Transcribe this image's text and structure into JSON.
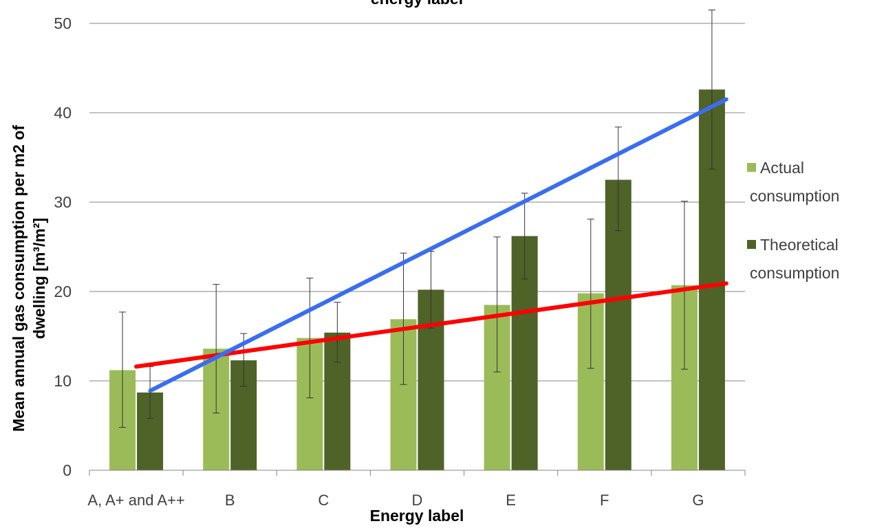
{
  "chart_data": {
    "type": "bar",
    "title": "energy label",
    "xlabel": "Energy label",
    "ylabel_line1": "Mean annual gas consumption per m2 of",
    "ylabel_line2": "dwelling [m³/m²]",
    "categories": [
      "A, A+ and A++",
      "B",
      "C",
      "D",
      "E",
      "F",
      "G"
    ],
    "ylim": [
      0,
      50
    ],
    "yticks": [
      0,
      10,
      20,
      30,
      40,
      50
    ],
    "grid": true,
    "legend_position": "right",
    "series": [
      {
        "name": "Actual consumption",
        "legend_lines": [
          "Actual",
          "consumption"
        ],
        "color": "#9bbb59",
        "values": [
          11.2,
          13.6,
          14.8,
          16.9,
          18.5,
          19.8,
          20.7
        ],
        "error_low": [
          4.8,
          6.4,
          8.1,
          9.6,
          11.0,
          11.4,
          11.3
        ],
        "error_high": [
          17.7,
          20.8,
          21.5,
          24.3,
          26.1,
          28.1,
          30.1
        ]
      },
      {
        "name": "Theoretical consumption",
        "legend_lines": [
          "Theoretical",
          "consumption"
        ],
        "color": "#4f6228",
        "values": [
          8.7,
          12.3,
          15.4,
          20.2,
          26.2,
          32.5,
          42.6
        ],
        "error_low": [
          5.8,
          9.4,
          12.1,
          15.9,
          21.4,
          26.8,
          33.7
        ],
        "error_high": [
          11.6,
          15.3,
          18.8,
          24.5,
          31.0,
          38.4,
          51.5
        ]
      }
    ],
    "trendlines": [
      {
        "color": "#ff0000",
        "from": {
          "x": 0,
          "y": 11.6
        },
        "to": {
          "x": 6.3,
          "y": 20.9
        }
      },
      {
        "color": "#3a6ef0",
        "from": {
          "x": 0.15,
          "y": 8.9
        },
        "to": {
          "x": 6.3,
          "y": 41.5
        }
      }
    ]
  }
}
